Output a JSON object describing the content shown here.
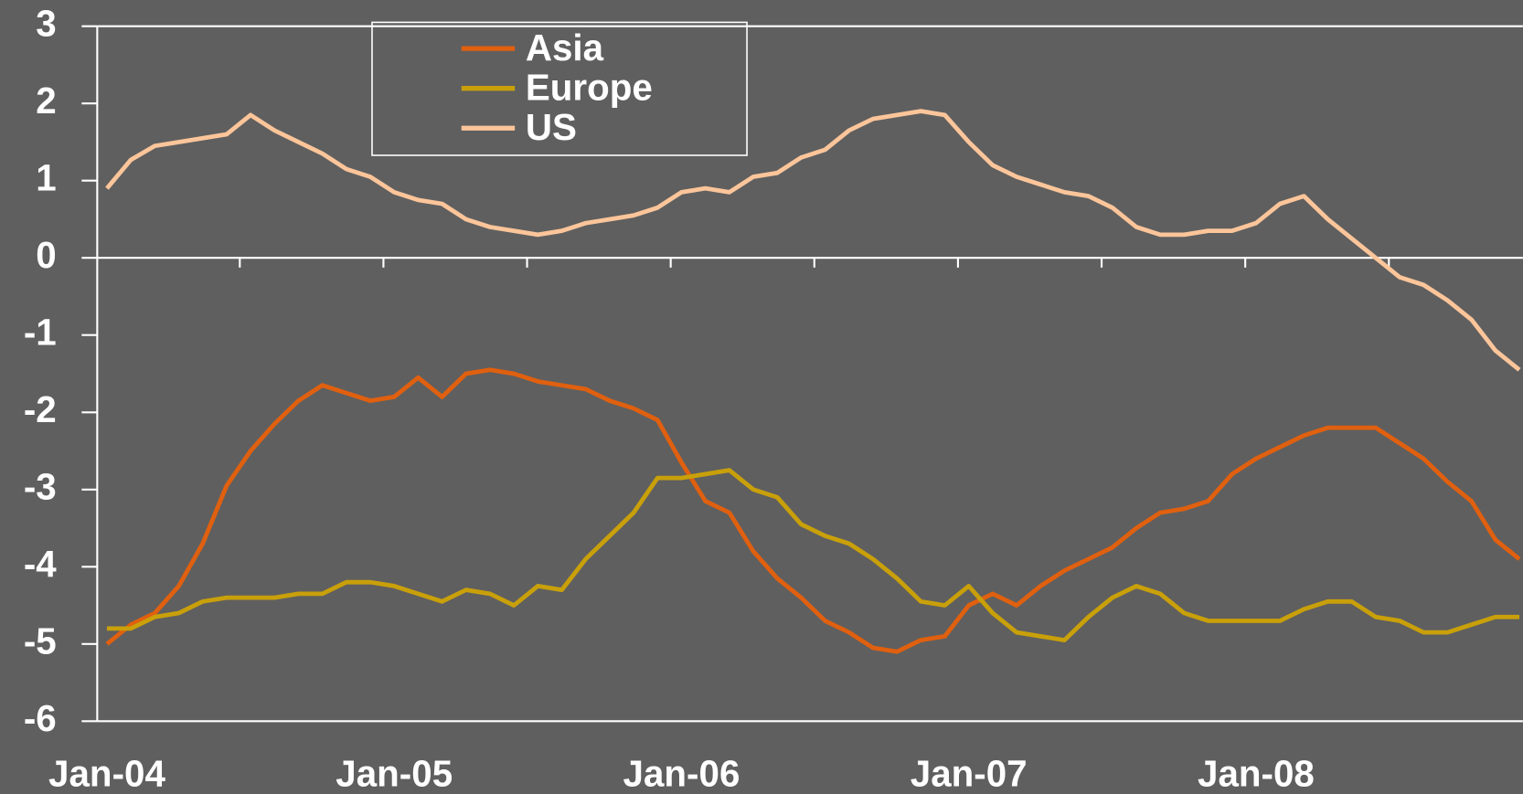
{
  "chart_data": {
    "type": "line",
    "categories": [
      "Jan-04",
      null,
      null,
      null,
      null,
      null,
      null,
      null,
      null,
      null,
      null,
      null,
      "Jan-05",
      null,
      null,
      null,
      null,
      null,
      null,
      null,
      null,
      null,
      null,
      null,
      "Jan-06",
      null,
      null,
      null,
      null,
      null,
      null,
      null,
      null,
      null,
      null,
      null,
      "Jan-07",
      null,
      null,
      null,
      null,
      null,
      null,
      null,
      null,
      null,
      null,
      null,
      "Jan-08",
      null,
      null,
      null,
      null,
      null,
      null,
      null,
      null,
      null,
      null,
      null
    ],
    "series": [
      {
        "name": "Asia",
        "color": "#e0600f",
        "values": [
          -5.0,
          -4.75,
          -4.6,
          -4.25,
          -3.7,
          -2.95,
          -2.5,
          -2.15,
          -1.85,
          -1.65,
          -1.75,
          -1.85,
          -1.8,
          -1.55,
          -1.8,
          -1.5,
          -1.45,
          -1.5,
          -1.6,
          -1.65,
          -1.7,
          -1.85,
          -1.95,
          -2.1,
          -2.65,
          -3.15,
          -3.3,
          -3.8,
          -4.15,
          -4.4,
          -4.7,
          -4.85,
          -5.05,
          -5.1,
          -4.95,
          -4.9,
          -4.5,
          -4.35,
          -4.5,
          -4.25,
          -4.05,
          -3.9,
          -3.75,
          -3.5,
          -3.3,
          -3.25,
          -3.15,
          -2.8,
          -2.6,
          -2.45,
          -2.3,
          -2.2,
          -2.2,
          -2.2,
          -2.4,
          -2.6,
          -2.9,
          -3.15,
          -3.65,
          -3.9
        ]
      },
      {
        "name": "Europe",
        "color": "#c9a00a",
        "values": [
          -4.8,
          -4.8,
          -4.65,
          -4.6,
          -4.45,
          -4.4,
          -4.4,
          -4.4,
          -4.35,
          -4.35,
          -4.2,
          -4.2,
          -4.25,
          -4.35,
          -4.45,
          -4.3,
          -4.35,
          -4.5,
          -4.25,
          -4.3,
          -3.9,
          -3.6,
          -3.3,
          -2.85,
          -2.85,
          -2.8,
          -2.75,
          -3.0,
          -3.1,
          -3.45,
          -3.6,
          -3.7,
          -3.9,
          -4.15,
          -4.45,
          -4.5,
          -4.25,
          -4.6,
          -4.85,
          -4.9,
          -4.95,
          -4.65,
          -4.4,
          -4.25,
          -4.35,
          -4.6,
          -4.7,
          -4.7,
          -4.7,
          -4.7,
          -4.55,
          -4.45,
          -4.45,
          -4.65,
          -4.7,
          -4.85,
          -4.85,
          -4.75,
          -4.65,
          -4.65
        ]
      },
      {
        "name": "US",
        "color": "#fcc59a",
        "values": [
          0.9,
          1.27,
          1.45,
          1.5,
          1.55,
          1.6,
          1.85,
          1.65,
          1.5,
          1.35,
          1.15,
          1.05,
          0.85,
          0.75,
          0.7,
          0.5,
          0.4,
          0.35,
          0.3,
          0.35,
          0.45,
          0.5,
          0.55,
          0.65,
          0.85,
          0.9,
          0.85,
          1.05,
          1.1,
          1.3,
          1.4,
          1.65,
          1.8,
          1.85,
          1.9,
          1.85,
          1.5,
          1.2,
          1.05,
          0.95,
          0.85,
          0.8,
          0.65,
          0.4,
          0.3,
          0.3,
          0.35,
          0.35,
          0.45,
          0.7,
          0.8,
          0.5,
          0.25,
          0,
          -0.25,
          -0.35,
          -0.55,
          -0.8,
          -1.2,
          -1.45
        ]
      }
    ],
    "ylim": [
      -6,
      3
    ],
    "yticks": [
      -6,
      -5,
      -4,
      -3,
      -2,
      -1,
      0,
      1,
      2,
      3
    ],
    "legend": "top-left"
  }
}
